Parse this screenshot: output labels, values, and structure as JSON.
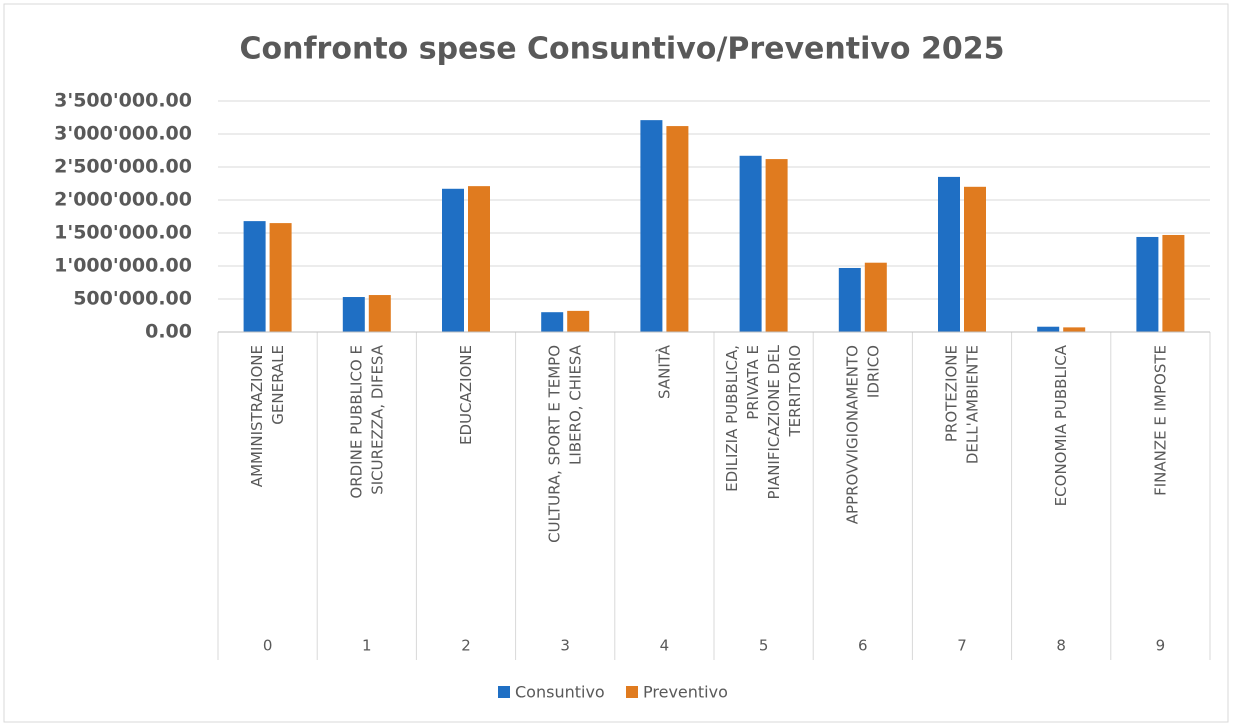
{
  "chart_data": {
    "type": "bar",
    "title": "Confronto spese Consuntivo/Preventivo 2025",
    "categories": [
      "AMMINISTRAZIONE GENERALE",
      "ORDINE PUBBLICO E SICUREZZA, DIFESA",
      "EDUCAZIONE",
      "CULTURA, SPORT E TEMPO LIBERO, CHIESA",
      "SANITÀ",
      "EDILIZIA PUBBLICA, PRIVATA E PIANIFICAZIONE DEL TERRITORIO",
      "APPROVVIGIONAMENTO IDRICO",
      "PROTEZIONE DELL'AMBIENTE",
      "ECONOMIA PUBBLICA",
      "FINANZE E IMPOSTE"
    ],
    "category_codes": [
      "0",
      "1",
      "2",
      "3",
      "4",
      "5",
      "6",
      "7",
      "8",
      "9"
    ],
    "series": [
      {
        "name": "Consuntivo",
        "color": "#1f6fc4",
        "values": [
          1680000,
          530000,
          2170000,
          300000,
          3210000,
          2670000,
          970000,
          2350000,
          80000,
          1440000
        ]
      },
      {
        "name": "Preventivo",
        "color": "#e07b1f",
        "values": [
          1650000,
          560000,
          2210000,
          320000,
          3120000,
          2620000,
          1050000,
          2200000,
          70000,
          1470000
        ]
      }
    ],
    "ylim": [
      0,
      3500000
    ],
    "yticks": [
      {
        "value": 0,
        "label": "0.00"
      },
      {
        "value": 500000,
        "label": "500'000.00"
      },
      {
        "value": 1000000,
        "label": "1'000'000.00"
      },
      {
        "value": 1500000,
        "label": "1'500'000.00"
      },
      {
        "value": 2000000,
        "label": "2'000'000.00"
      },
      {
        "value": 2500000,
        "label": "2'500'000.00"
      },
      {
        "value": 3000000,
        "label": "3'000'000.00"
      },
      {
        "value": 3500000,
        "label": "3'500'000.00"
      }
    ],
    "grid": true,
    "legend": "bottom"
  }
}
